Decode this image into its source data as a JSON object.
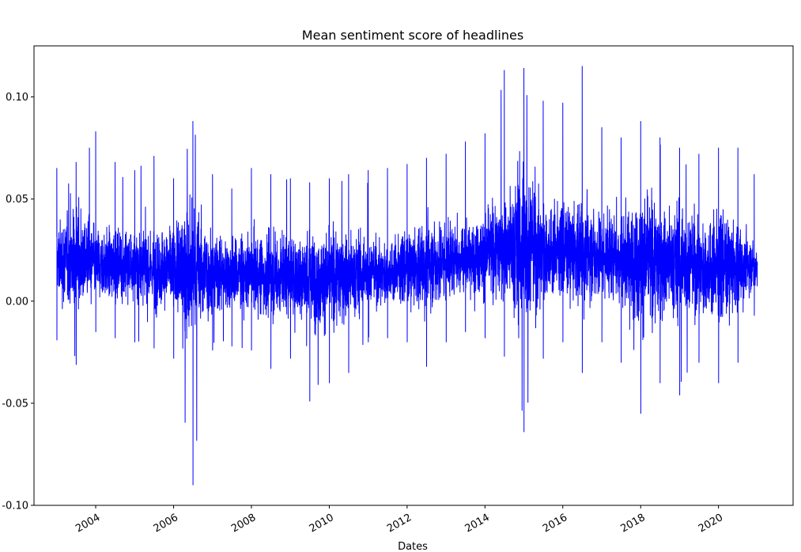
{
  "chart_data": {
    "type": "line",
    "title": "Mean sentiment score of headlines",
    "xlabel": "Dates",
    "ylabel": "",
    "x_range": [
      "2003-01-01",
      "2020-12-31"
    ],
    "xlim": [
      "2002-06-01",
      "2021-12-01"
    ],
    "ylim": [
      -0.1,
      0.125
    ],
    "yticks": [
      -0.1,
      -0.05,
      0.0,
      0.05,
      0.1
    ],
    "ytick_labels": [
      "-0.10",
      "-0.05",
      "0.00",
      "0.05",
      "0.10"
    ],
    "xticks": [
      "2004-01-01",
      "2006-01-01",
      "2008-01-01",
      "2010-01-01",
      "2012-01-01",
      "2014-01-01",
      "2016-01-01",
      "2018-01-01",
      "2020-01-01"
    ],
    "xtick_labels": [
      "2004",
      "2006",
      "2008",
      "2010",
      "2012",
      "2014",
      "2016",
      "2018",
      "2020"
    ],
    "grid": false,
    "legend": "none",
    "line_color": "#0000ff",
    "series": [
      {
        "name": "",
        "x": [
          "2003-01",
          "2003-07",
          "2004-01",
          "2004-07",
          "2005-01",
          "2005-07",
          "2006-01",
          "2006-07",
          "2007-01",
          "2007-07",
          "2008-01",
          "2008-07",
          "2009-01",
          "2009-07",
          "2010-01",
          "2010-07",
          "2011-01",
          "2011-07",
          "2012-01",
          "2012-07",
          "2013-01",
          "2013-07",
          "2014-01",
          "2014-07",
          "2015-01",
          "2015-07",
          "2016-01",
          "2016-07",
          "2017-01",
          "2017-07",
          "2018-01",
          "2018-07",
          "2019-01",
          "2019-07",
          "2020-01",
          "2020-07",
          "2020-12"
        ],
        "mean": [
          0.02,
          0.021,
          0.019,
          0.018,
          0.017,
          0.016,
          0.016,
          0.015,
          0.014,
          0.014,
          0.013,
          0.012,
          0.012,
          0.011,
          0.012,
          0.013,
          0.014,
          0.015,
          0.016,
          0.018,
          0.02,
          0.022,
          0.024,
          0.026,
          0.027,
          0.026,
          0.025,
          0.024,
          0.023,
          0.022,
          0.021,
          0.02,
          0.019,
          0.018,
          0.017,
          0.017,
          0.018
        ],
        "high": [
          0.065,
          0.068,
          0.083,
          0.068,
          0.064,
          0.071,
          0.06,
          0.088,
          0.062,
          0.055,
          0.065,
          0.062,
          0.06,
          0.058,
          0.06,
          0.062,
          0.064,
          0.065,
          0.067,
          0.07,
          0.072,
          0.078,
          0.082,
          0.113,
          0.114,
          0.098,
          0.097,
          0.115,
          0.085,
          0.08,
          0.088,
          0.08,
          0.075,
          0.072,
          0.075,
          0.075,
          0.062
        ],
        "low": [
          -0.019,
          -0.031,
          -0.015,
          -0.018,
          -0.02,
          -0.023,
          -0.028,
          -0.09,
          -0.024,
          -0.022,
          -0.024,
          -0.033,
          -0.028,
          -0.049,
          -0.04,
          -0.035,
          -0.02,
          -0.018,
          -0.02,
          -0.032,
          -0.02,
          -0.015,
          -0.018,
          -0.027,
          -0.064,
          -0.028,
          -0.02,
          -0.035,
          -0.02,
          -0.03,
          -0.055,
          -0.04,
          -0.046,
          -0.03,
          -0.04,
          -0.03,
          -0.007
        ]
      }
    ]
  }
}
